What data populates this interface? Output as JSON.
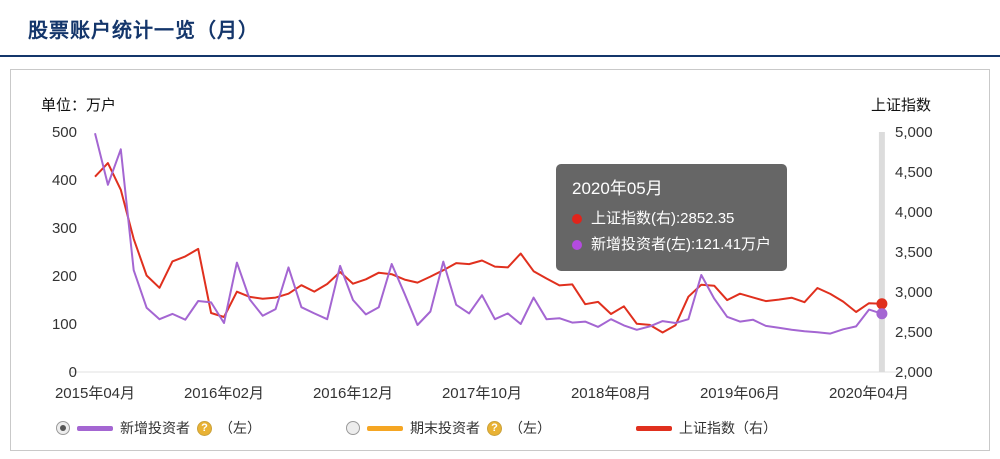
{
  "header": {
    "title": "股票账户统计一览（月）"
  },
  "panel": {
    "left_axis_title": "单位：万户",
    "right_axis_title": "上证指数"
  },
  "tooltip": {
    "title": "2020年05月",
    "lines": [
      {
        "color": "#e0241b",
        "text": "上证指数(右):2852.35"
      },
      {
        "color": "#b44be0",
        "text": "新增投资者(左):121.41万户"
      }
    ]
  },
  "legend": {
    "items": [
      {
        "radio": "selected",
        "swatch_color": "#a466d2",
        "label": "新增投资者",
        "help": "?",
        "suffix": "（左）"
      },
      {
        "radio": "unselected",
        "swatch_color": "#f5a623",
        "label": "期末投资者",
        "help": "?",
        "suffix": "（左）"
      },
      {
        "radio": "none",
        "swatch_color": "#e0301e",
        "label": "上证指数（右）",
        "help": "",
        "suffix": ""
      }
    ]
  },
  "chart_data": {
    "type": "line",
    "title": "股票账户统计一览（月）",
    "x_tick_labels": [
      "2015年04月",
      "2016年02月",
      "2016年12月",
      "2017年10月",
      "2018年08月",
      "2019年06月",
      "2020年04月"
    ],
    "x_tick_indices": [
      0,
      10,
      20,
      30,
      40,
      50,
      60
    ],
    "left_axis": {
      "title": "单位：万户",
      "ticks": [
        500,
        400,
        300,
        200,
        100,
        0
      ],
      "min": 0,
      "max": 500
    },
    "right_axis": {
      "title": "上证指数",
      "ticks": [
        "5,000",
        "4,500",
        "4,000",
        "3,500",
        "3,000",
        "2,500",
        "2,000"
      ],
      "min": 2000,
      "max": 5000
    },
    "grid": false,
    "legend_position": "bottom",
    "hover_point": {
      "label": "2020年05月",
      "sse_index": 2852.35,
      "new_investors": 121.41
    },
    "series": [
      {
        "key": "sse-index",
        "name": "上证指数（右）",
        "axis": "right",
        "color": "#e0301e",
        "values": [
          4441.66,
          4611.74,
          4277.22,
          3663.73,
          3205.99,
          3052.78,
          3382.56,
          3445.4,
          3539.18,
          2737.6,
          2687.98,
          3003.92,
          2938.32,
          2916.62,
          2929.61,
          2979.34,
          3085.49,
          3004.7,
          3100.49,
          3250.03,
          3103.64,
          3159.17,
          3241.73,
          3222.51,
          3154.66,
          3117.18,
          3192.43,
          3273.03,
          3360.81,
          3348.94,
          3393.34,
          3317.19,
          3307.17,
          3480.83,
          3259.41,
          3168.9,
          3082.23,
          3095.47,
          2847.42,
          2876.4,
          2725.25,
          2821.35,
          2602.78,
          2588.19,
          2493.9,
          2584.57,
          2940.95,
          3090.76,
          3078.34,
          2898.7,
          2978.88,
          2932.51,
          2886.24,
          2905.19,
          2929.06,
          2871.98,
          3050.12,
          2976.53,
          2880.3,
          2750.3,
          2860.08,
          2852.35
        ]
      },
      {
        "key": "new-investors",
        "name": "新增投资者（左）",
        "axis": "left",
        "color": "#a466d2",
        "values": [
          497.5,
          390,
          464,
          212,
          134,
          110,
          121,
          109,
          148,
          145,
          102,
          228,
          151,
          117,
          131,
          218,
          135,
          122,
          110,
          221,
          150,
          120,
          135,
          225,
          163,
          98,
          126,
          230,
          140,
          122,
          160,
          110,
          122,
          100,
          155,
          110,
          112,
          103,
          105,
          94,
          110,
          97,
          88,
          95,
          106,
          102,
          110,
          202,
          153,
          115,
          105,
          109,
          96,
          92,
          88,
          85,
          83,
          80,
          89,
          95,
          130,
          121.41
        ]
      }
    ]
  }
}
